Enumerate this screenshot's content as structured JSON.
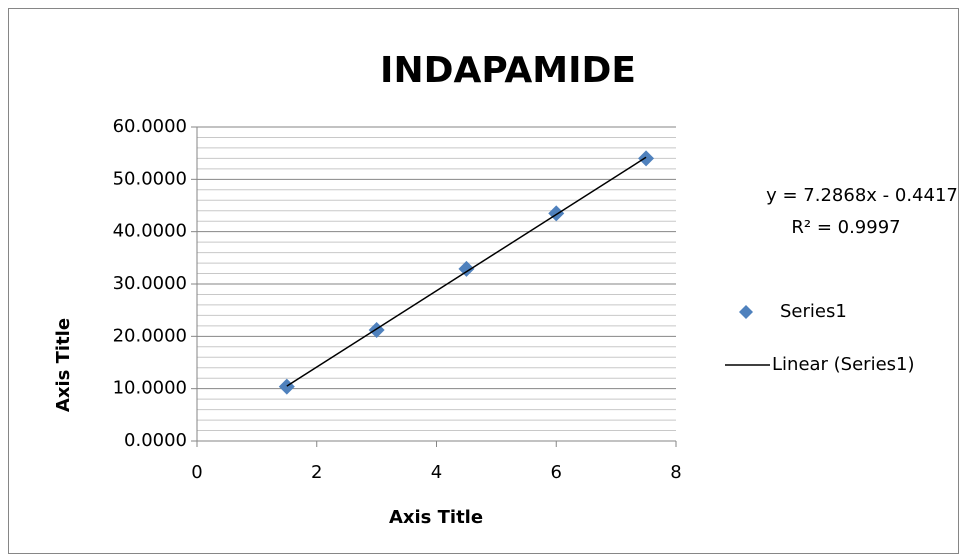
{
  "chart_data": {
    "type": "scatter",
    "title": "INDAPAMIDE",
    "x_label": "Axis Title",
    "y_label": "Axis Title",
    "series": [
      {
        "name": "Series1",
        "color": "#4f81bd",
        "marker": "diamond",
        "x": [
          1.5,
          3,
          4.5,
          6,
          7.5
        ],
        "values": [
          10.4,
          21.2,
          32.9,
          43.5,
          54.0
        ]
      },
      {
        "name": "Linear (Series1)",
        "color": "#000000",
        "marker": "line",
        "x": [
          1.5,
          7.5
        ],
        "values": [
          10.49,
          54.21
        ]
      }
    ],
    "annotations": [
      "y = 7.2868x - 0.4417",
      "R² = 0.9997"
    ],
    "xlim": [
      0,
      8
    ],
    "xticks": [
      0,
      2,
      4,
      6,
      8
    ],
    "ylim": [
      0,
      60
    ],
    "yticks": [
      {
        "value": 0,
        "label": "0.0000"
      },
      {
        "value": 10,
        "label": "10.0000"
      },
      {
        "value": 20,
        "label": "20.0000"
      },
      {
        "value": 30,
        "label": "30.0000"
      },
      {
        "value": 40,
        "label": "40.0000"
      },
      {
        "value": 50,
        "label": "50.0000"
      },
      {
        "value": 60,
        "label": "60.0000"
      }
    ],
    "grid": true,
    "minor_grid": true,
    "legend": "right"
  }
}
